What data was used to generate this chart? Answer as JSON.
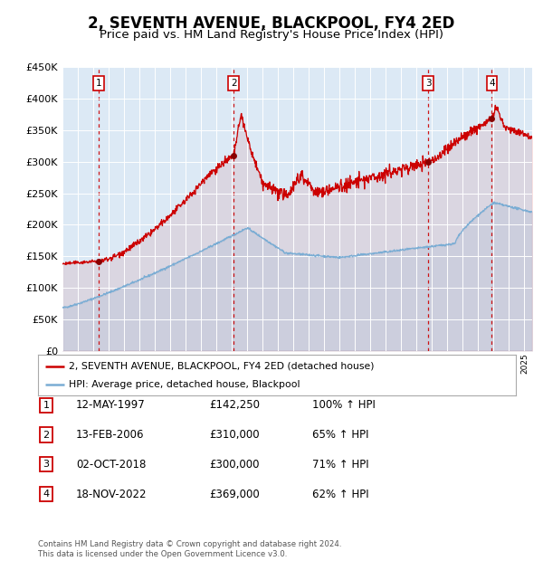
{
  "title": "2, SEVENTH AVENUE, BLACKPOOL, FY4 2ED",
  "subtitle": "Price paid vs. HM Land Registry's House Price Index (HPI)",
  "title_fontsize": 12,
  "subtitle_fontsize": 9.5,
  "plot_bg_color": "#dce9f5",
  "red_line_color": "#cc0000",
  "blue_line_color": "#7aadd4",
  "grid_color": "#ffffff",
  "ylim": [
    0,
    450000
  ],
  "yticks": [
    0,
    50000,
    100000,
    150000,
    200000,
    250000,
    300000,
    350000,
    400000,
    450000
  ],
  "purchases": [
    {
      "num": 1,
      "date": "12-MAY-1997",
      "price": 142250,
      "pct": "100%",
      "x_year": 1997.36
    },
    {
      "num": 2,
      "date": "13-FEB-2006",
      "price": 310000,
      "pct": "65%",
      "x_year": 2006.12
    },
    {
      "num": 3,
      "date": "02-OCT-2018",
      "price": 300000,
      "pct": "71%",
      "x_year": 2018.75
    },
    {
      "num": 4,
      "date": "18-NOV-2022",
      "price": 369000,
      "pct": "62%",
      "x_year": 2022.88
    }
  ],
  "legend_red": "2, SEVENTH AVENUE, BLACKPOOL, FY4 2ED (detached house)",
  "legend_blue": "HPI: Average price, detached house, Blackpool",
  "footer": "Contains HM Land Registry data © Crown copyright and database right 2024.\nThis data is licensed under the Open Government Licence v3.0.",
  "xmin": 1995.0,
  "xmax": 2025.5
}
